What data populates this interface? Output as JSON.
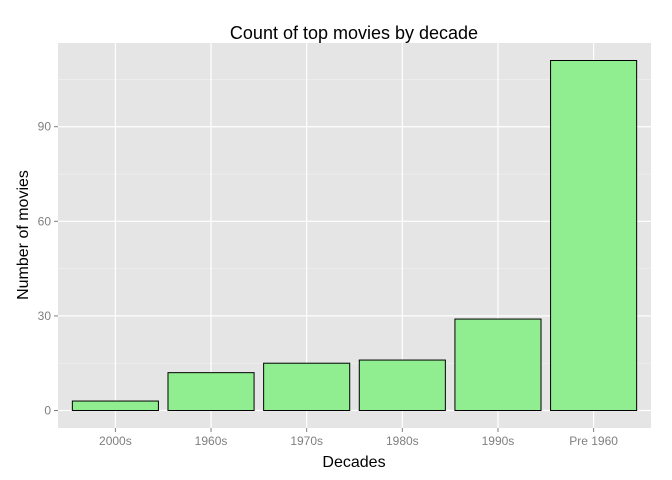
{
  "chart_data": {
    "type": "bar",
    "title": "Count of top movies by decade",
    "xlabel": "Decades",
    "ylabel": "Number of movies",
    "categories": [
      "2000s",
      "1960s",
      "1970s",
      "1980s",
      "1990s",
      "Pre 1960"
    ],
    "values": [
      3,
      12,
      15,
      16,
      29,
      111
    ],
    "ylim": [
      -5.55,
      116.55
    ],
    "yticks": [
      0,
      30,
      60,
      90
    ],
    "grid": true,
    "legend": "none",
    "colors": {
      "bar_fill": "#90EE90",
      "bar_stroke": "#000000",
      "panel_background": "#E5E5E5",
      "grid_major": "#FFFFFF",
      "grid_minor": "#F2F2F2"
    }
  }
}
